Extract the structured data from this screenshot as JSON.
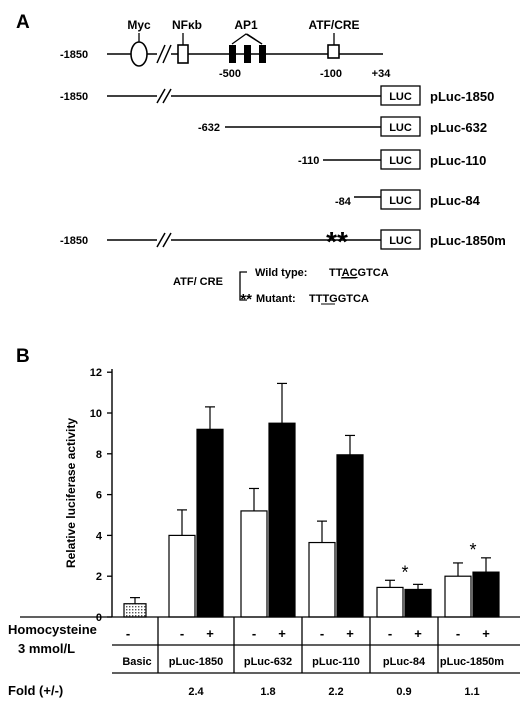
{
  "panel_a": {
    "label": "A",
    "elements": {
      "myc": "Myc",
      "nfkb": "NFκb",
      "ap1": "AP1",
      "atf_cre": "ATF/CRE"
    },
    "positions": {
      "start": "-1850",
      "p500": "-500",
      "p100": "-100",
      "end": "+34"
    },
    "luc_label": "LUC",
    "constructs": [
      {
        "start": "-1850",
        "name": "pLuc-1850"
      },
      {
        "start": "-632",
        "name": "pLuc-632"
      },
      {
        "start": "-110",
        "name": "pLuc-110"
      },
      {
        "start": "-84",
        "name": "pLuc-84"
      },
      {
        "start": "-1850",
        "name": "pLuc-1850m"
      }
    ],
    "mutation_mark": "**",
    "legend": {
      "title": "ATF/ CRE",
      "wild_label": "Wild type:",
      "wild_seq": {
        "pre": "TT",
        "mid": "AC",
        "post": "GTCA"
      },
      "mut_stars": "**",
      "mut_label": "Mutant:",
      "mut_seq": {
        "pre": "TT",
        "mid": "TG",
        "post": "GTCA"
      }
    }
  },
  "panel_b": {
    "label": "B",
    "homocysteine_label": [
      "Homocysteine",
      "3 mmol/L"
    ],
    "fold_label": "Fold (+/-)",
    "minus": "-",
    "plus": "+",
    "significance": "*"
  },
  "chart_data": {
    "type": "bar",
    "ylabel": "Relative luciferase activity",
    "ylim": [
      0,
      12
    ],
    "yticks": [
      0,
      2,
      4,
      6,
      8,
      10,
      12
    ],
    "categories": [
      "Basic",
      "pLuc-1850",
      "pLuc-632",
      "pLuc-110",
      "pLuc-84",
      "pLuc-1850m"
    ],
    "basic": {
      "value": 0.65,
      "error": 0.3
    },
    "series": [
      {
        "values": [
          null,
          4.0,
          5.2,
          3.65,
          1.45,
          2.0
        ],
        "errors": [
          null,
          1.25,
          1.1,
          1.05,
          0.35,
          0.65
        ]
      },
      {
        "values": [
          null,
          9.2,
          9.5,
          7.95,
          1.35,
          2.2
        ],
        "errors": [
          null,
          1.1,
          1.95,
          0.95,
          0.25,
          0.7
        ]
      }
    ],
    "fold": [
      "",
      "2.4",
      "1.8",
      "2.2",
      "0.9",
      "1.1"
    ],
    "significant": [
      false,
      false,
      false,
      false,
      true,
      true
    ],
    "colors": {
      "basic": "#bdbdbd",
      "minus": "#ffffff",
      "plus": "#000000"
    }
  }
}
